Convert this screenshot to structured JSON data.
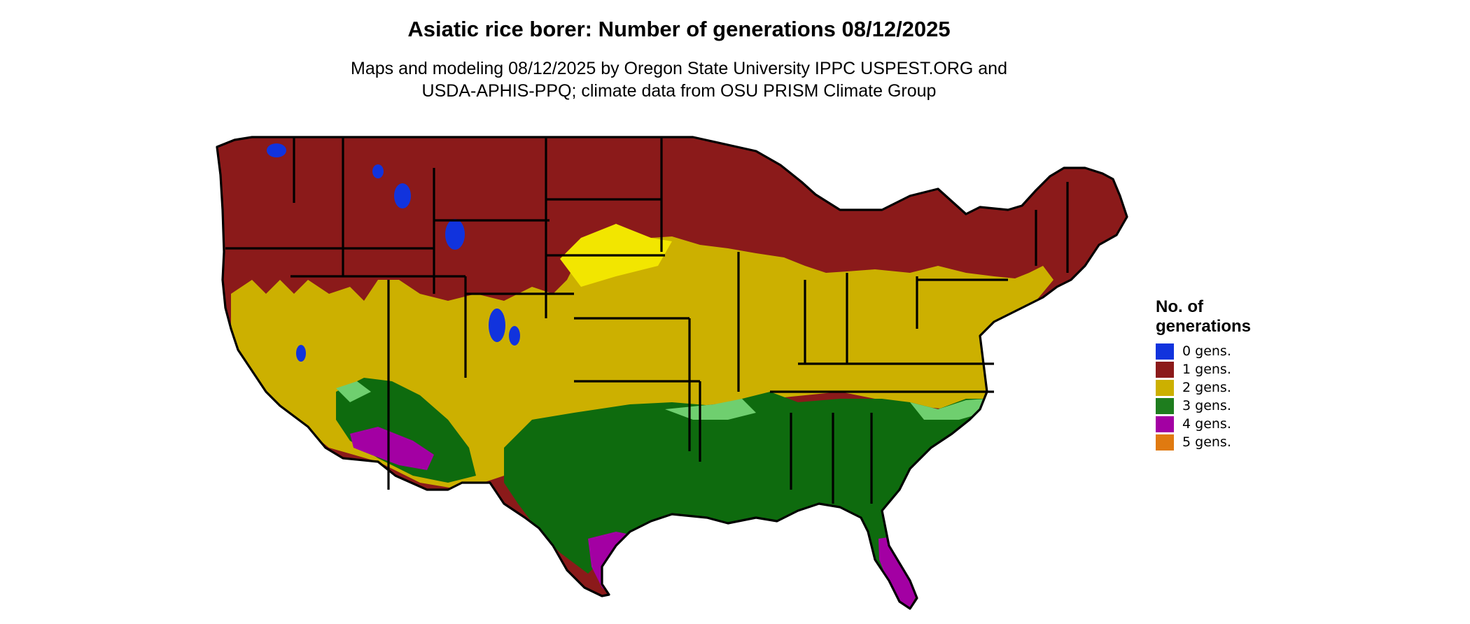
{
  "map": {
    "title": "Asiatic rice borer: Number of generations 08/12/2025",
    "subtitle_line1": "Maps and modeling 08/12/2025 by Oregon State University IPPC USPEST.ORG and",
    "subtitle_line2": "USDA-APHIS-PPQ; climate data from OSU PRISM Climate Group"
  },
  "legend": {
    "title_line1": "No. of",
    "title_line2": "generations",
    "items": [
      {
        "label": "0 gens.",
        "color": "#1133dd"
      },
      {
        "label": "1 gens.",
        "color": "#8b1a1a"
      },
      {
        "label": "2 gens.",
        "color": "#ccb000"
      },
      {
        "label": "3 gens.",
        "color": "#1e7d1e"
      },
      {
        "label": "4 gens.",
        "color": "#a300a3"
      },
      {
        "label": "5 gens.",
        "color": "#e07a10"
      }
    ]
  },
  "zone_colors": {
    "one_gen": "#8b1a1a",
    "two_gen": "#ccb000",
    "two_gen_light": "#f2e600",
    "three_gen": "#0e6b0e",
    "three_gen_light": "#6fcf6f",
    "four_gen": "#a300a3",
    "zero_gen": "#1133dd",
    "five_gen_spots": "#e07a10"
  }
}
